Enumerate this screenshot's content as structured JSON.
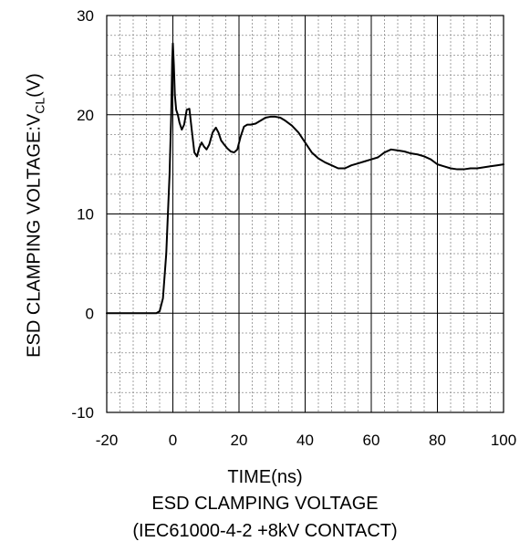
{
  "chart_data": {
    "type": "line",
    "xlabel": "TIME(ns)",
    "ylabel": {
      "main": "ESD CLAMPING VOLTAGE:V",
      "sub": "CL",
      "unit": "(V)"
    },
    "title": "ESD CLAMPING VOLTAGE",
    "subtitle": "(IEC61000-4-2   +8kV CONTACT)",
    "xlim": [
      -20,
      100
    ],
    "ylim": [
      -10,
      30
    ],
    "xticks": [
      -20,
      0,
      20,
      40,
      60,
      80,
      100
    ],
    "yticks": [
      -10,
      0,
      10,
      20,
      30
    ],
    "x_minor_step": 4,
    "y_minor_step": 2,
    "grid": true,
    "line_color": "#000000",
    "series": [
      {
        "x": [
          -20,
          -10,
          -5,
          -4,
          -3,
          -2,
          -1,
          -0.5,
          -0.2,
          0,
          0.3,
          0.6,
          1,
          1.5,
          2,
          2.7,
          3.4,
          4.2,
          5,
          5.7,
          6.5,
          7.3,
          8,
          8.7,
          9.4,
          10.2,
          11,
          12,
          13,
          13.8,
          14.6,
          15.5,
          16.5,
          17.5,
          18.5,
          19.5,
          20.5,
          21.5,
          22.5,
          23.5,
          25,
          26.5,
          28,
          29.5,
          31,
          32.5,
          34,
          36,
          38,
          40,
          42,
          44,
          46,
          48,
          50,
          52,
          54,
          56,
          58,
          60,
          62,
          64,
          66,
          68,
          70,
          72,
          74,
          76,
          78,
          80,
          82,
          84,
          86,
          88,
          90,
          92,
          94,
          96,
          98,
          100
        ],
        "y": [
          0,
          0,
          0,
          0.2,
          1.5,
          6,
          14,
          20,
          25.5,
          27.2,
          25,
          22,
          20.5,
          20,
          19.2,
          18.5,
          19,
          20.5,
          20.6,
          18.5,
          16.2,
          15.8,
          16.7,
          17.2,
          16.8,
          16.5,
          17,
          18.2,
          18.7,
          18.2,
          17.4,
          17,
          16.6,
          16.3,
          16.2,
          16.5,
          17.8,
          18.8,
          19,
          19,
          19.1,
          19.4,
          19.7,
          19.8,
          19.8,
          19.7,
          19.4,
          18.9,
          18.2,
          17.2,
          16.2,
          15.6,
          15.2,
          14.9,
          14.6,
          14.6,
          14.9,
          15.1,
          15.3,
          15.5,
          15.7,
          16.2,
          16.5,
          16.4,
          16.3,
          16.1,
          16,
          15.8,
          15.5,
          15,
          14.8,
          14.6,
          14.5,
          14.5,
          14.6,
          14.6,
          14.7,
          14.8,
          14.9,
          15
        ]
      }
    ]
  }
}
